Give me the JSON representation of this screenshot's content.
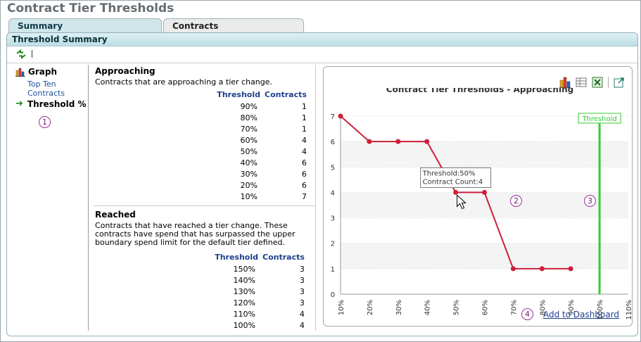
{
  "page": {
    "title": "Contract Tier Thresholds"
  },
  "tabs": [
    {
      "label": "Summary",
      "active": true
    },
    {
      "label": "Contracts",
      "active": false
    }
  ],
  "panel": {
    "title": "Threshold Summary"
  },
  "toolbar": {
    "separator": "|"
  },
  "nav": {
    "graph_label": "Graph",
    "top_ten_line1": "Top Ten",
    "top_ten_line2": "Contracts",
    "current_label": "Threshold %",
    "current_arrow": "➔"
  },
  "callouts": {
    "c1": "1",
    "c2": "2",
    "c3": "3",
    "c4": "4"
  },
  "approaching": {
    "title": "Approaching",
    "description": "Contracts that are approaching a tier change.",
    "col_threshold": "Threshold",
    "col_contracts": "Contracts",
    "rows": [
      {
        "threshold": "90%",
        "contracts": "1"
      },
      {
        "threshold": "80%",
        "contracts": "1"
      },
      {
        "threshold": "70%",
        "contracts": "1"
      },
      {
        "threshold": "60%",
        "contracts": "4"
      },
      {
        "threshold": "50%",
        "contracts": "4"
      },
      {
        "threshold": "40%",
        "contracts": "6"
      },
      {
        "threshold": "30%",
        "contracts": "6"
      },
      {
        "threshold": "20%",
        "contracts": "6"
      },
      {
        "threshold": "10%",
        "contracts": "7"
      }
    ]
  },
  "reached": {
    "title": "Reached",
    "description": "Contracts that have reached a tier change. These contracts have spend that has surpassed the upper boundary spend limit for the default tier defined.",
    "col_threshold": "Threshold",
    "col_contracts": "Contracts",
    "rows": [
      {
        "threshold": "150%",
        "contracts": "3"
      },
      {
        "threshold": "140%",
        "contracts": "3"
      },
      {
        "threshold": "130%",
        "contracts": "3"
      },
      {
        "threshold": "120%",
        "contracts": "3"
      },
      {
        "threshold": "110%",
        "contracts": "4"
      },
      {
        "threshold": "100%",
        "contracts": "4"
      }
    ]
  },
  "chart_icons": [
    "bar-chart-icon",
    "grid-view-icon",
    "excel-export-icon",
    "popout-icon"
  ],
  "add_to_dashboard": "Add to Dashboard",
  "chart_data": {
    "type": "line",
    "title": "Contract Tier Thresholds - Approaching",
    "categories": [
      "10%",
      "20%",
      "30%",
      "40%",
      "50%",
      "60%",
      "70%",
      "80%",
      "90%",
      "100%",
      "110%"
    ],
    "x": [
      10,
      20,
      30,
      40,
      50,
      60,
      70,
      80,
      90
    ],
    "values": [
      7,
      6,
      6,
      6,
      4,
      4,
      1,
      1,
      1
    ],
    "ylim": [
      0,
      7
    ],
    "yticks": [
      "0",
      "1",
      "2",
      "3",
      "4",
      "5",
      "6",
      "7"
    ],
    "xlim": [
      10,
      110
    ],
    "grid": true,
    "line_color": "#cc1f3a",
    "threshold_line": {
      "x": 100,
      "label": "Threshold",
      "color": "#33cc33"
    },
    "tooltip": {
      "line1": "Threshold:50%",
      "line2": "Contract Count:4"
    }
  }
}
